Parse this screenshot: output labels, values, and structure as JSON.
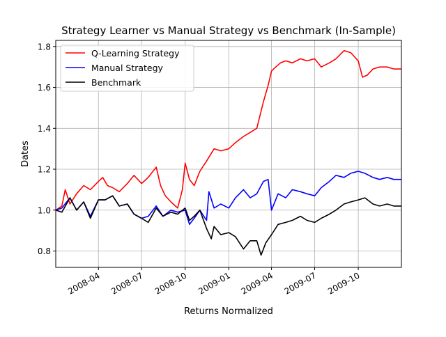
{
  "chart_data": {
    "type": "line",
    "title": "Strategy Learner vs Manual Strategy vs Benchmark (In-Sample)",
    "xlabel": "Returns Normalized",
    "ylabel": "Dates",
    "x_axis_type": "date",
    "xlim": [
      "2008-01-02",
      "2009-12-31"
    ],
    "ylim": [
      0.72,
      1.83
    ],
    "x_ticks": [
      "2008-04",
      "2008-07",
      "2008-10",
      "2009-01",
      "2009-04",
      "2009-07",
      "2009-10"
    ],
    "x_tick_dates": [
      "2008-04-01",
      "2008-07-01",
      "2008-10-01",
      "2009-01-01",
      "2009-04-01",
      "2009-07-01",
      "2009-10-01"
    ],
    "y_ticks": [
      "0.8",
      "1.0",
      "1.2",
      "1.4",
      "1.6",
      "1.8"
    ],
    "y_tick_values": [
      0.8,
      1.0,
      1.2,
      1.4,
      1.6,
      1.8
    ],
    "grid": true,
    "legend_position": "top-left",
    "series": [
      {
        "name": "Q-Learning Strategy",
        "color": "#ff0000",
        "x": [
          "2008-01-02",
          "2008-01-15",
          "2008-01-22",
          "2008-02-01",
          "2008-02-15",
          "2008-03-01",
          "2008-03-15",
          "2008-04-01",
          "2008-04-10",
          "2008-04-20",
          "2008-05-01",
          "2008-05-15",
          "2008-06-01",
          "2008-06-15",
          "2008-07-01",
          "2008-07-15",
          "2008-08-01",
          "2008-08-10",
          "2008-08-20",
          "2008-09-01",
          "2008-09-15",
          "2008-09-25",
          "2008-10-01",
          "2008-10-10",
          "2008-10-20",
          "2008-11-01",
          "2008-11-15",
          "2008-12-01",
          "2008-12-15",
          "2009-01-01",
          "2009-01-15",
          "2009-02-01",
          "2009-02-15",
          "2009-03-01",
          "2009-03-15",
          "2009-03-25",
          "2009-04-01",
          "2009-04-10",
          "2009-04-20",
          "2009-05-01",
          "2009-05-15",
          "2009-06-01",
          "2009-06-15",
          "2009-07-01",
          "2009-07-15",
          "2009-08-01",
          "2009-08-15",
          "2009-09-01",
          "2009-09-15",
          "2009-10-01",
          "2009-10-10",
          "2009-10-20",
          "2009-11-01",
          "2009-11-15",
          "2009-12-01",
          "2009-12-15",
          "2009-12-31"
        ],
        "values": [
          1.0,
          1.02,
          1.1,
          1.03,
          1.08,
          1.12,
          1.1,
          1.14,
          1.16,
          1.12,
          1.11,
          1.09,
          1.13,
          1.17,
          1.13,
          1.16,
          1.21,
          1.12,
          1.07,
          1.04,
          1.01,
          1.1,
          1.23,
          1.15,
          1.12,
          1.19,
          1.24,
          1.3,
          1.29,
          1.3,
          1.33,
          1.36,
          1.38,
          1.4,
          1.53,
          1.61,
          1.68,
          1.7,
          1.72,
          1.73,
          1.72,
          1.74,
          1.73,
          1.74,
          1.7,
          1.72,
          1.74,
          1.78,
          1.77,
          1.73,
          1.65,
          1.66,
          1.69,
          1.7,
          1.7,
          1.69,
          1.69
        ]
      },
      {
        "name": "Manual Strategy",
        "color": "#0000ff",
        "x": [
          "2008-01-02",
          "2008-01-15",
          "2008-02-01",
          "2008-02-15",
          "2008-03-01",
          "2008-03-15",
          "2008-04-01",
          "2008-04-15",
          "2008-05-01",
          "2008-05-15",
          "2008-06-01",
          "2008-06-15",
          "2008-07-01",
          "2008-07-15",
          "2008-08-01",
          "2008-08-15",
          "2008-09-01",
          "2008-09-15",
          "2008-10-01",
          "2008-10-10",
          "2008-10-20",
          "2008-11-01",
          "2008-11-15",
          "2008-11-20",
          "2008-12-01",
          "2008-12-15",
          "2009-01-01",
          "2009-01-15",
          "2009-02-01",
          "2009-02-15",
          "2009-03-01",
          "2009-03-15",
          "2009-03-25",
          "2009-04-01",
          "2009-04-15",
          "2009-05-01",
          "2009-05-15",
          "2009-06-01",
          "2009-06-15",
          "2009-07-01",
          "2009-07-15",
          "2009-08-01",
          "2009-08-15",
          "2009-09-01",
          "2009-09-15",
          "2009-10-01",
          "2009-10-15",
          "2009-11-01",
          "2009-11-15",
          "2009-12-01",
          "2009-12-15",
          "2009-12-31"
        ],
        "values": [
          1.0,
          1.01,
          1.06,
          1.0,
          1.04,
          0.97,
          1.05,
          1.05,
          1.07,
          1.02,
          1.03,
          0.98,
          0.96,
          0.97,
          1.02,
          0.97,
          1.0,
          0.99,
          1.0,
          0.93,
          0.96,
          1.0,
          0.95,
          1.09,
          1.01,
          1.03,
          1.01,
          1.06,
          1.1,
          1.06,
          1.08,
          1.14,
          1.15,
          1.0,
          1.08,
          1.06,
          1.1,
          1.09,
          1.08,
          1.07,
          1.11,
          1.14,
          1.17,
          1.16,
          1.18,
          1.19,
          1.18,
          1.16,
          1.15,
          1.16,
          1.15,
          1.15
        ]
      },
      {
        "name": "Benchmark",
        "color": "#000000",
        "x": [
          "2008-01-02",
          "2008-01-15",
          "2008-02-01",
          "2008-02-15",
          "2008-03-01",
          "2008-03-15",
          "2008-04-01",
          "2008-04-15",
          "2008-05-01",
          "2008-05-15",
          "2008-06-01",
          "2008-06-15",
          "2008-07-01",
          "2008-07-15",
          "2008-08-01",
          "2008-08-15",
          "2008-09-01",
          "2008-09-15",
          "2008-10-01",
          "2008-10-10",
          "2008-10-20",
          "2008-11-01",
          "2008-11-15",
          "2008-11-25",
          "2008-12-01",
          "2008-12-15",
          "2009-01-01",
          "2009-01-15",
          "2009-02-01",
          "2009-02-15",
          "2009-03-01",
          "2009-03-10",
          "2009-03-20",
          "2009-04-01",
          "2009-04-15",
          "2009-05-01",
          "2009-05-15",
          "2009-06-01",
          "2009-06-15",
          "2009-07-01",
          "2009-07-15",
          "2009-08-01",
          "2009-08-15",
          "2009-09-01",
          "2009-09-15",
          "2009-10-01",
          "2009-10-15",
          "2009-11-01",
          "2009-11-15",
          "2009-12-01",
          "2009-12-15",
          "2009-12-31"
        ],
        "values": [
          1.0,
          0.99,
          1.06,
          1.0,
          1.04,
          0.96,
          1.05,
          1.05,
          1.07,
          1.02,
          1.03,
          0.98,
          0.96,
          0.94,
          1.01,
          0.97,
          0.99,
          0.98,
          1.01,
          0.95,
          0.97,
          1.0,
          0.91,
          0.86,
          0.92,
          0.88,
          0.89,
          0.87,
          0.81,
          0.85,
          0.85,
          0.78,
          0.84,
          0.88,
          0.93,
          0.94,
          0.95,
          0.97,
          0.95,
          0.94,
          0.96,
          0.98,
          1.0,
          1.03,
          1.04,
          1.05,
          1.06,
          1.03,
          1.02,
          1.03,
          1.02,
          1.02
        ]
      }
    ]
  }
}
